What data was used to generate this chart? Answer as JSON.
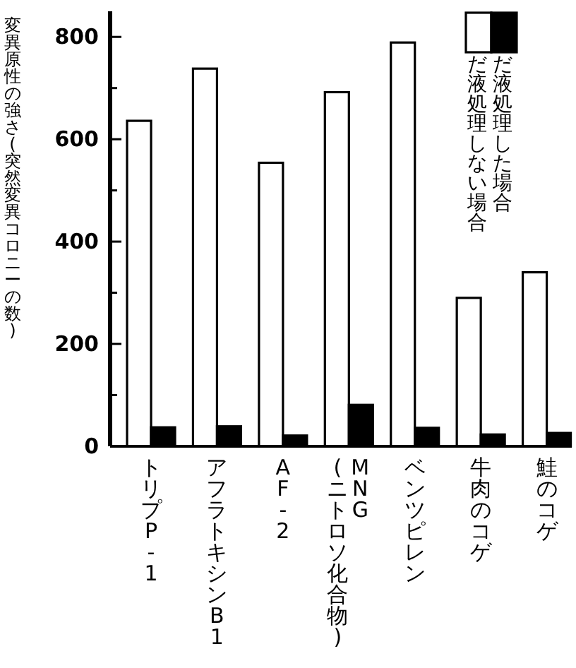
{
  "chart_data": {
    "type": "bar",
    "ylabel": "変異原性の強さ(突然変異コロニーの数)",
    "categories": [
      "トリプP-1",
      "アフラトキシンB1",
      "AF-2",
      "MNG\n(ニトロソ化合物)",
      "ベンツピレン",
      "牛肉のコゲ",
      "鮭のコゲ"
    ],
    "series": [
      {
        "name": "だ液処理しない場合",
        "color": "#ffffff",
        "values": [
          636,
          738,
          554,
          692,
          789,
          290,
          340
        ]
      },
      {
        "name": "だ液処理した場合",
        "color": "#000000",
        "values": [
          37,
          39,
          21,
          81,
          36,
          23,
          26
        ]
      }
    ],
    "ylim": [
      0,
      850
    ],
    "yticks": [
      0,
      {
        "value": 100,
        "label": null
      },
      200,
      {
        "value": 300,
        "label": null
      },
      400,
      {
        "value": 500,
        "label": null
      },
      600,
      {
        "value": 700,
        "label": null
      },
      800
    ],
    "legend": "top right"
  }
}
